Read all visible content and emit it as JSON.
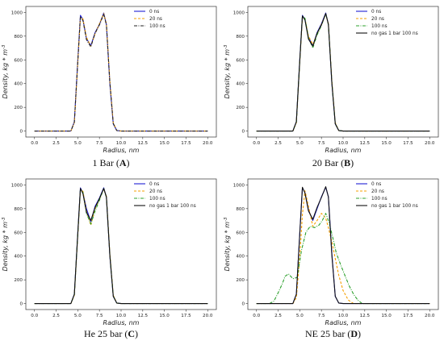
{
  "figure": {
    "panels": [
      {
        "caption_prefix": "1 Bar (",
        "caption_letter": "A",
        "caption_suffix": ")"
      },
      {
        "caption_prefix": "20 Bar (",
        "caption_letter": "B",
        "caption_suffix": ")"
      },
      {
        "caption_prefix": "He 25 bar (",
        "caption_letter": "C",
        "caption_suffix": ")"
      },
      {
        "caption_prefix": "NE 25 bar (",
        "caption_letter": "D",
        "caption_suffix": ")"
      }
    ]
  },
  "chart_data": [
    {
      "type": "line",
      "xlabel": "Radius, nm",
      "ylabel": "Density, kg * m^-3",
      "xlim": [
        -1,
        21
      ],
      "ylim": [
        -50,
        1050
      ],
      "xticks": [
        "0.0",
        "2.5",
        "5.0",
        "7.5",
        "10.0",
        "12.5",
        "15.0",
        "17.5",
        "20.0"
      ],
      "yticks": [
        "0",
        "200",
        "400",
        "600",
        "800",
        "1000"
      ],
      "legend_position": "top-right",
      "series": [
        {
          "name": "0 ns",
          "color": "#1f1fd6",
          "dash": "solid",
          "x": [
            0,
            4.2,
            4.6,
            5.0,
            5.3,
            5.6,
            6.0,
            6.5,
            7.0,
            7.5,
            8.0,
            8.3,
            8.7,
            9.1,
            9.5,
            10.0,
            20
          ],
          "y": [
            0,
            0,
            80,
            600,
            975,
            940,
            780,
            720,
            830,
            900,
            995,
            900,
            400,
            60,
            5,
            0,
            0
          ]
        },
        {
          "name": "20 ns",
          "color": "#f5a000",
          "dash": "dashed",
          "x": [
            0,
            4.2,
            4.6,
            5.0,
            5.3,
            5.6,
            6.0,
            6.5,
            7.0,
            7.5,
            8.0,
            8.3,
            8.7,
            9.1,
            9.5,
            10.0,
            20
          ],
          "y": [
            0,
            0,
            70,
            580,
            960,
            945,
            790,
            715,
            820,
            905,
            990,
            905,
            420,
            70,
            5,
            0,
            0
          ]
        },
        {
          "name": "100 ns",
          "color": "#222222",
          "dash": "dashdot",
          "x": [
            0,
            4.2,
            4.6,
            5.0,
            5.3,
            5.6,
            6.0,
            6.5,
            7.0,
            7.5,
            8.0,
            8.3,
            8.7,
            9.1,
            9.5,
            10.0,
            20
          ],
          "y": [
            0,
            0,
            75,
            590,
            965,
            930,
            770,
            710,
            825,
            895,
            985,
            895,
            410,
            65,
            5,
            0,
            0
          ]
        }
      ]
    },
    {
      "type": "line",
      "xlabel": "Radius, nm",
      "ylabel": "Density, kg * m^-3",
      "xlim": [
        -1,
        21
      ],
      "ylim": [
        -50,
        1050
      ],
      "xticks": [
        "0.0",
        "2.5",
        "5.0",
        "7.5",
        "10.0",
        "12.5",
        "15.0",
        "17.5",
        "20.0"
      ],
      "yticks": [
        "0",
        "200",
        "400",
        "600",
        "800",
        "1000"
      ],
      "legend_position": "top-right",
      "series": [
        {
          "name": "0 ns",
          "color": "#1f1fd6",
          "dash": "solid",
          "x": [
            0,
            4.2,
            4.6,
            5.0,
            5.3,
            5.6,
            6.0,
            6.5,
            7.0,
            7.5,
            8.0,
            8.3,
            8.7,
            9.1,
            9.5,
            10.0,
            20
          ],
          "y": [
            0,
            0,
            80,
            610,
            975,
            940,
            790,
            720,
            830,
            905,
            995,
            900,
            400,
            60,
            5,
            0,
            0
          ]
        },
        {
          "name": "20 ns",
          "color": "#f5a000",
          "dash": "dashed",
          "x": [
            0,
            4.2,
            4.6,
            5.0,
            5.3,
            5.6,
            6.0,
            6.5,
            7.0,
            7.5,
            8.0,
            8.3,
            8.7,
            9.1,
            9.5,
            10.0,
            20
          ],
          "y": [
            0,
            0,
            70,
            590,
            960,
            945,
            800,
            730,
            820,
            900,
            985,
            905,
            420,
            70,
            5,
            0,
            0
          ]
        },
        {
          "name": "100 ns",
          "color": "#2ca02c",
          "dash": "dashdot",
          "x": [
            0,
            4.2,
            4.6,
            5.0,
            5.3,
            5.6,
            6.0,
            6.5,
            7.0,
            7.5,
            8.0,
            8.3,
            8.7,
            9.1,
            9.5,
            10.0,
            20
          ],
          "y": [
            0,
            0,
            75,
            600,
            970,
            950,
            785,
            700,
            810,
            890,
            990,
            895,
            410,
            65,
            5,
            0,
            0
          ]
        },
        {
          "name": "no gas 1 bar 100 ns",
          "color": "#111111",
          "dash": "solid",
          "x": [
            0,
            4.2,
            4.6,
            5.0,
            5.3,
            5.6,
            6.0,
            6.5,
            7.0,
            7.5,
            8.0,
            8.3,
            8.7,
            9.1,
            9.5,
            10.0,
            20
          ],
          "y": [
            0,
            0,
            78,
            600,
            970,
            935,
            775,
            715,
            825,
            895,
            990,
            898,
            405,
            62,
            5,
            0,
            0
          ]
        }
      ]
    },
    {
      "type": "line",
      "xlabel": "Radius, nm",
      "ylabel": "Density, kg * m^-3",
      "xlim": [
        -1,
        21
      ],
      "ylim": [
        -50,
        1050
      ],
      "xticks": [
        "0.0",
        "2.5",
        "5.0",
        "7.5",
        "10.0",
        "12.5",
        "15.0",
        "17.5",
        "20.0"
      ],
      "yticks": [
        "0",
        "200",
        "400",
        "600",
        "800",
        "1000"
      ],
      "legend_position": "top-right",
      "series": [
        {
          "name": "0 ns",
          "color": "#1f1fd6",
          "dash": "solid",
          "x": [
            0,
            4.2,
            4.6,
            5.0,
            5.3,
            5.6,
            6.0,
            6.5,
            7.0,
            7.5,
            8.0,
            8.3,
            8.7,
            9.1,
            9.5,
            10.0,
            20
          ],
          "y": [
            0,
            0,
            80,
            600,
            975,
            930,
            800,
            690,
            820,
            890,
            975,
            900,
            400,
            60,
            5,
            0,
            0
          ]
        },
        {
          "name": "20 ns",
          "color": "#f5a000",
          "dash": "dashed",
          "x": [
            0,
            4.2,
            4.6,
            5.0,
            5.3,
            5.6,
            6.0,
            6.5,
            7.0,
            7.5,
            8.0,
            8.3,
            8.7,
            9.1,
            9.5,
            10.0,
            20
          ],
          "y": [
            0,
            0,
            70,
            580,
            960,
            945,
            780,
            660,
            800,
            880,
            965,
            905,
            420,
            70,
            5,
            0,
            0
          ]
        },
        {
          "name": "100 ns",
          "color": "#2ca02c",
          "dash": "dashdot",
          "x": [
            0,
            4.2,
            4.6,
            5.0,
            5.3,
            5.6,
            6.0,
            6.5,
            7.0,
            7.5,
            8.0,
            8.3,
            8.7,
            9.1,
            9.5,
            10.0,
            20
          ],
          "y": [
            0,
            0,
            75,
            590,
            965,
            935,
            760,
            670,
            780,
            870,
            970,
            895,
            410,
            65,
            5,
            0,
            0
          ]
        },
        {
          "name": "no gas 1 bar 100 ns",
          "color": "#111111",
          "dash": "solid",
          "x": [
            0,
            4.2,
            4.6,
            5.0,
            5.3,
            5.6,
            6.0,
            6.5,
            7.0,
            7.5,
            8.0,
            8.3,
            8.7,
            9.1,
            9.5,
            10.0,
            20
          ],
          "y": [
            0,
            0,
            78,
            595,
            970,
            925,
            770,
            700,
            810,
            885,
            970,
            898,
            405,
            62,
            5,
            0,
            0
          ]
        }
      ]
    },
    {
      "type": "line",
      "xlabel": "Radius, nm",
      "ylabel": "Density, kg * m^-3",
      "xlim": [
        -1,
        21
      ],
      "ylim": [
        -50,
        1050
      ],
      "xticks": [
        "0.0",
        "2.5",
        "5.0",
        "7.5",
        "10.0",
        "12.5",
        "15.0",
        "17.5",
        "20.0"
      ],
      "yticks": [
        "0",
        "200",
        "400",
        "600",
        "800",
        "1000"
      ],
      "legend_position": "top-right",
      "series": [
        {
          "name": "0 ns",
          "color": "#1f1fd6",
          "dash": "solid",
          "x": [
            0,
            4.2,
            4.6,
            5.0,
            5.3,
            5.6,
            6.0,
            6.5,
            7.0,
            7.5,
            8.0,
            8.3,
            8.7,
            9.1,
            9.5,
            10.0,
            20
          ],
          "y": [
            0,
            0,
            80,
            600,
            975,
            935,
            790,
            700,
            800,
            900,
            980,
            900,
            420,
            60,
            5,
            0,
            0
          ]
        },
        {
          "name": "20 ns",
          "color": "#f5a000",
          "dash": "dashed",
          "x": [
            0,
            4.2,
            4.6,
            5.0,
            5.3,
            5.6,
            6.0,
            6.5,
            7.0,
            7.5,
            8.0,
            8.3,
            8.7,
            9.1,
            9.5,
            10.0,
            10.6,
            11.2,
            20
          ],
          "y": [
            0,
            0,
            50,
            400,
            750,
            950,
            820,
            650,
            700,
            760,
            720,
            640,
            520,
            380,
            240,
            110,
            30,
            0,
            0
          ]
        },
        {
          "name": "100 ns",
          "color": "#2ca02c",
          "dash": "dashdot",
          "x": [
            0,
            1.5,
            2.0,
            2.5,
            3.0,
            3.3,
            3.7,
            4.2,
            4.7,
            5.2,
            5.7,
            6.2,
            6.7,
            7.2,
            7.6,
            8.0,
            8.4,
            8.8,
            9.2,
            9.7,
            10.2,
            10.7,
            11.2,
            11.7,
            12.2,
            20
          ],
          "y": [
            0,
            0,
            20,
            90,
            170,
            230,
            250,
            210,
            220,
            450,
            600,
            650,
            640,
            660,
            700,
            760,
            680,
            560,
            430,
            330,
            240,
            150,
            80,
            30,
            0,
            0
          ]
        },
        {
          "name": "no gas 1 bar 100 ns",
          "color": "#111111",
          "dash": "solid",
          "x": [
            0,
            4.2,
            4.6,
            5.0,
            5.3,
            5.6,
            6.0,
            6.5,
            7.0,
            7.5,
            8.0,
            8.3,
            8.7,
            9.1,
            9.5,
            10.0,
            20
          ],
          "y": [
            0,
            0,
            78,
            595,
            980,
            930,
            780,
            710,
            810,
            895,
            985,
            898,
            405,
            62,
            5,
            0,
            0
          ]
        }
      ]
    }
  ]
}
